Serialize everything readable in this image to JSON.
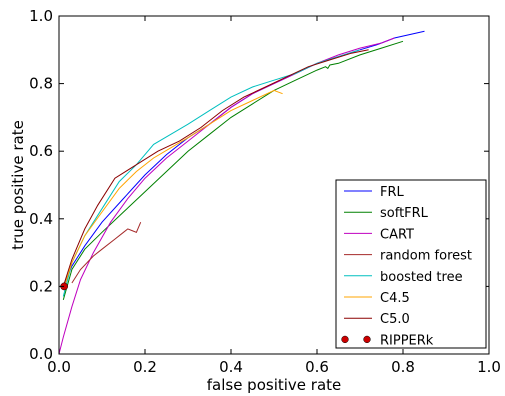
{
  "chart_data": {
    "type": "line",
    "xlabel": "false positive rate",
    "ylabel": "true positive rate",
    "xlim": [
      0.0,
      1.0
    ],
    "ylim": [
      0.0,
      1.0
    ],
    "xticks": [
      "0.0",
      "0.2",
      "0.4",
      "0.6",
      "0.8",
      "1.0"
    ],
    "yticks": [
      "0.0",
      "0.2",
      "0.4",
      "0.6",
      "0.8",
      "1.0"
    ],
    "grid": false,
    "legend_position": "lower-right",
    "series": [
      {
        "name": "FRL",
        "color": "#0000ff",
        "marker": "line",
        "x": [
          0.01,
          0.03,
          0.06,
          0.1,
          0.15,
          0.2,
          0.25,
          0.3,
          0.35,
          0.4,
          0.45,
          0.5,
          0.55,
          0.6,
          0.65,
          0.7,
          0.74,
          0.78,
          0.85
        ],
        "y": [
          0.2,
          0.26,
          0.32,
          0.39,
          0.46,
          0.53,
          0.59,
          0.64,
          0.68,
          0.73,
          0.77,
          0.8,
          0.83,
          0.86,
          0.88,
          0.9,
          0.915,
          0.935,
          0.955
        ]
      },
      {
        "name": "softFRL",
        "color": "#008000",
        "marker": "line",
        "x": [
          0.01,
          0.03,
          0.06,
          0.1,
          0.15,
          0.2,
          0.25,
          0.3,
          0.35,
          0.4,
          0.45,
          0.5,
          0.55,
          0.6,
          0.62,
          0.625,
          0.63,
          0.65,
          0.7,
          0.75,
          0.8
        ],
        "y": [
          0.16,
          0.25,
          0.31,
          0.36,
          0.42,
          0.48,
          0.54,
          0.6,
          0.65,
          0.7,
          0.74,
          0.78,
          0.81,
          0.84,
          0.85,
          0.845,
          0.855,
          0.86,
          0.885,
          0.905,
          0.925
        ]
      },
      {
        "name": "CART",
        "color": "#bf00bf",
        "marker": "line",
        "x": [
          0.0,
          0.01,
          0.03,
          0.05,
          0.08,
          0.12,
          0.16,
          0.2,
          0.25,
          0.3,
          0.35,
          0.4,
          0.45,
          0.5,
          0.55,
          0.6,
          0.65,
          0.7,
          0.75,
          0.78
        ],
        "y": [
          0.0,
          0.05,
          0.14,
          0.22,
          0.3,
          0.39,
          0.46,
          0.52,
          0.58,
          0.63,
          0.68,
          0.73,
          0.77,
          0.8,
          0.83,
          0.86,
          0.885,
          0.905,
          0.92,
          0.935
        ]
      },
      {
        "name": "random forest",
        "color": "#a52a2a",
        "marker": "line",
        "x": [
          0.03,
          0.05,
          0.08,
          0.1,
          0.13,
          0.15,
          0.16,
          0.17,
          0.18,
          0.19
        ],
        "y": [
          0.21,
          0.25,
          0.29,
          0.31,
          0.34,
          0.36,
          0.37,
          0.365,
          0.36,
          0.39
        ]
      },
      {
        "name": "boosted tree",
        "color": "#00bfbf",
        "marker": "line",
        "x": [
          0.01,
          0.03,
          0.06,
          0.1,
          0.14,
          0.18,
          0.22,
          0.26,
          0.3,
          0.35,
          0.4,
          0.45,
          0.5,
          0.55,
          0.6,
          0.65,
          0.7
        ],
        "y": [
          0.17,
          0.27,
          0.35,
          0.43,
          0.51,
          0.56,
          0.62,
          0.65,
          0.68,
          0.72,
          0.76,
          0.79,
          0.81,
          0.83,
          0.86,
          0.88,
          0.9
        ]
      },
      {
        "name": "C4.5",
        "color": "#ffa500",
        "marker": "line",
        "x": [
          0.01,
          0.03,
          0.06,
          0.1,
          0.14,
          0.18,
          0.22,
          0.26,
          0.3,
          0.35,
          0.4,
          0.45,
          0.5,
          0.52
        ],
        "y": [
          0.19,
          0.27,
          0.35,
          0.42,
          0.49,
          0.54,
          0.58,
          0.61,
          0.64,
          0.68,
          0.72,
          0.75,
          0.78,
          0.77
        ]
      },
      {
        "name": "C5.0",
        "color": "#8b0000",
        "marker": "line",
        "x": [
          0.01,
          0.03,
          0.06,
          0.09,
          0.13,
          0.18,
          0.23,
          0.28,
          0.33,
          0.38,
          0.43,
          0.48,
          0.53,
          0.58,
          0.63,
          0.68,
          0.72
        ],
        "y": [
          0.2,
          0.28,
          0.37,
          0.44,
          0.52,
          0.56,
          0.6,
          0.63,
          0.67,
          0.72,
          0.76,
          0.79,
          0.82,
          0.85,
          0.87,
          0.89,
          0.9
        ]
      },
      {
        "name": "RIPPERk",
        "color": "#cc0000",
        "marker": "point",
        "x": [
          0.012
        ],
        "y": [
          0.2
        ]
      }
    ]
  }
}
